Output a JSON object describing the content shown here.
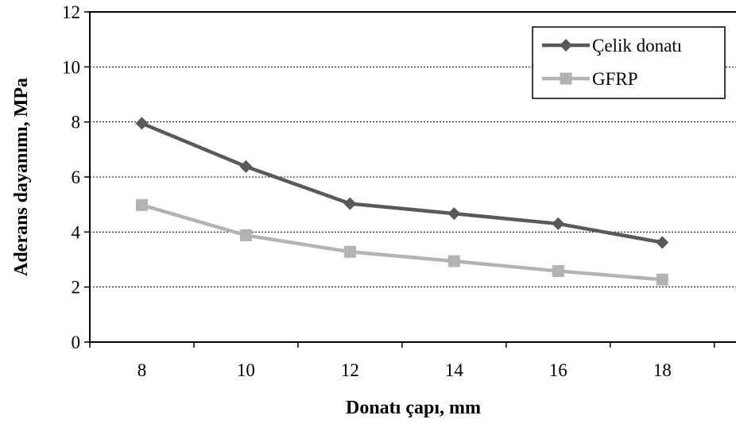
{
  "chart_data": {
    "type": "line",
    "title": "",
    "xlabel": "Donatı çapı, mm",
    "ylabel": "Aderans dayanımı, MPa",
    "categories": [
      "8",
      "10",
      "12",
      "14",
      "16",
      "18"
    ],
    "y_ticks": [
      "0",
      "2",
      "4",
      "6",
      "8",
      "10",
      "12"
    ],
    "ylim": [
      0,
      12
    ],
    "grid": "horizontal dotted",
    "legend_position": "top-right",
    "series": [
      {
        "name": "Çelik donatı",
        "marker": "diamond",
        "color": "#595959",
        "values": [
          7.95,
          6.38,
          5.03,
          4.67,
          4.3,
          3.62
        ]
      },
      {
        "name": "GFRP",
        "marker": "square",
        "color": "#b3b3b3",
        "values": [
          4.98,
          3.88,
          3.28,
          2.94,
          2.58,
          2.27
        ]
      }
    ]
  }
}
